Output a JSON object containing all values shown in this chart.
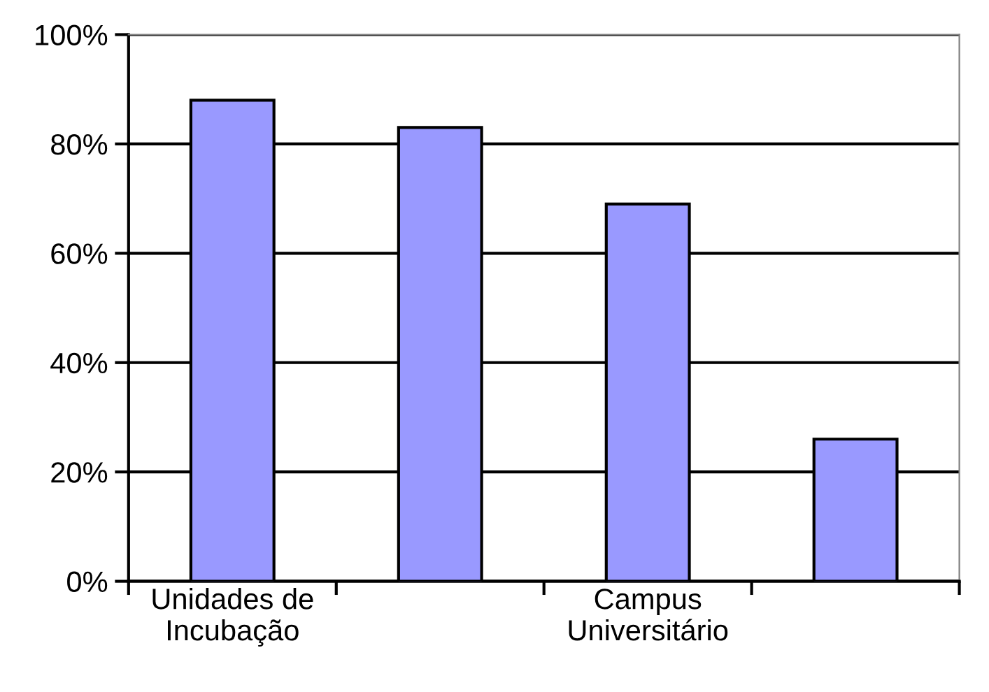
{
  "chart_data": {
    "type": "bar",
    "categories": [
      "Unidades de\nIncubação",
      null,
      "Campus\nUniversitário",
      null
    ],
    "values": [
      88,
      83,
      69,
      26
    ],
    "color": "#9999ff",
    "ylim": [
      0,
      100
    ],
    "yticks": [
      {
        "value": 0,
        "label": "0%"
      },
      {
        "value": 20,
        "label": "20%"
      },
      {
        "value": 40,
        "label": "40%"
      },
      {
        "value": 60,
        "label": "60%"
      },
      {
        "value": 80,
        "label": "80%"
      },
      {
        "value": 100,
        "label": "100%"
      }
    ],
    "grid": "y"
  }
}
